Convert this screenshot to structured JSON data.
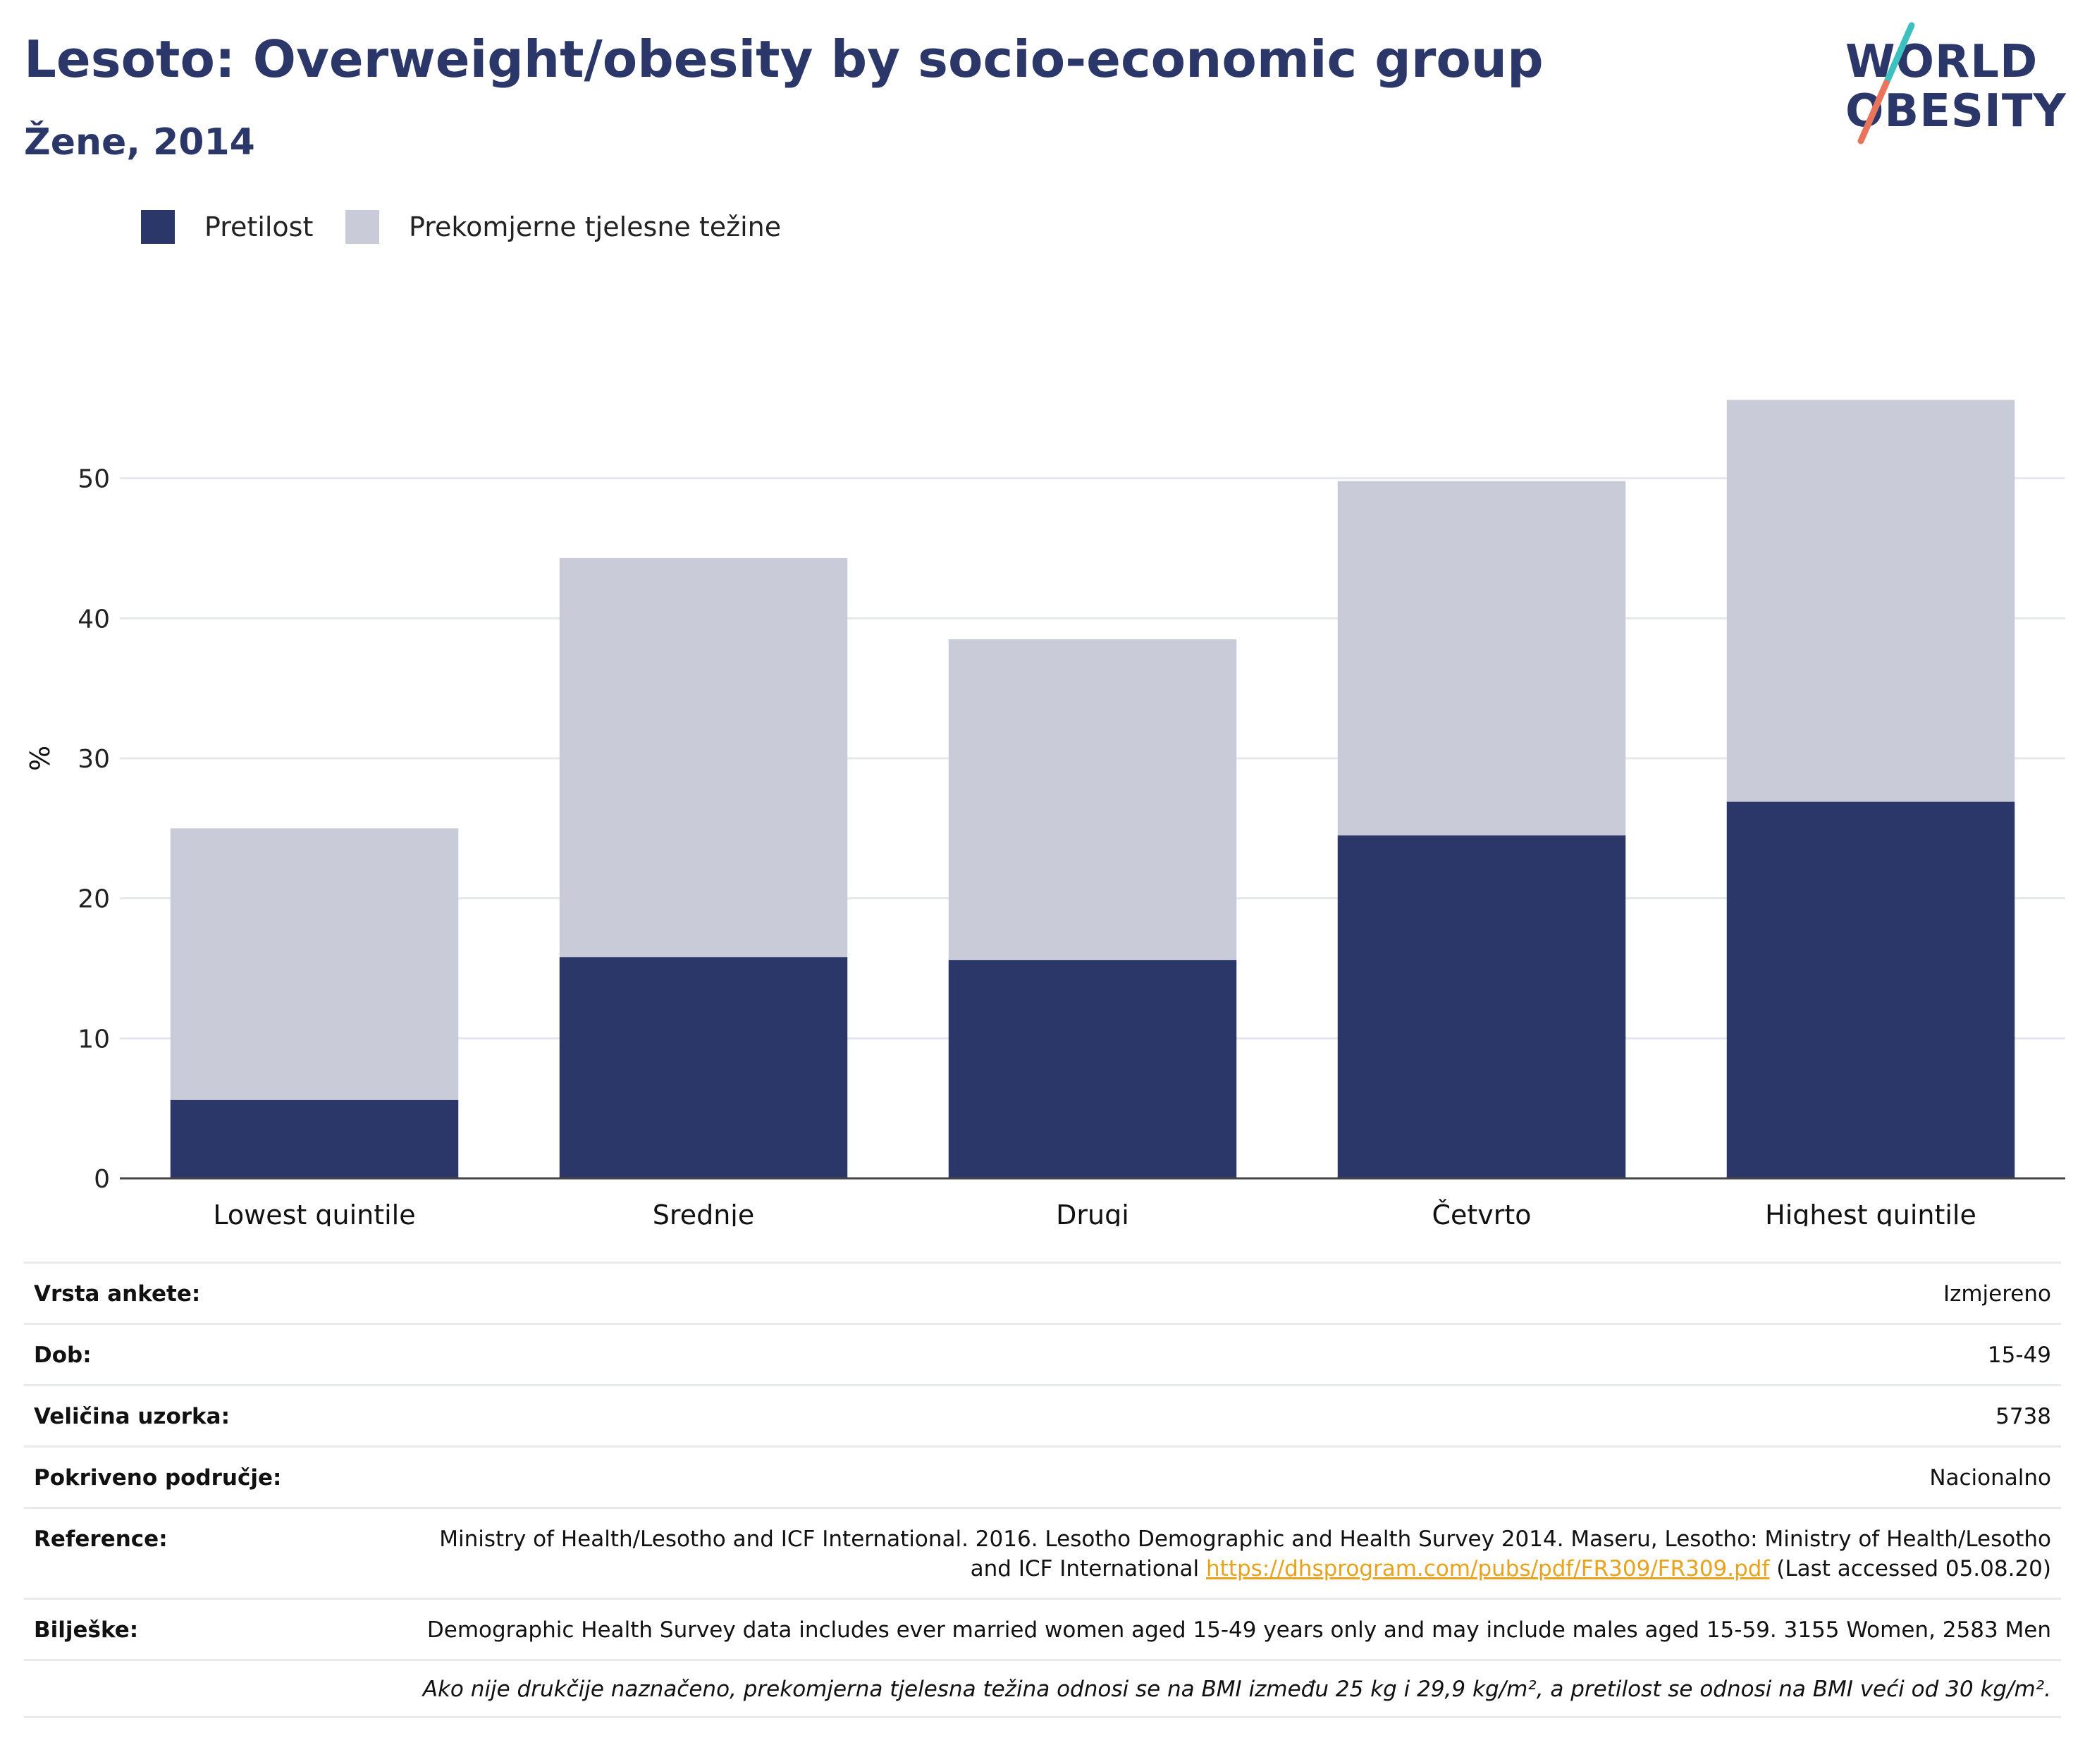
{
  "header": {
    "title": "Lesoto: Overweight/obesity by socio-economic group",
    "subtitle": "Žene, 2014"
  },
  "logo": {
    "line1": "WORLD",
    "line2": "OBESITY",
    "colors": {
      "text": "#2b3769",
      "slash_top": "#3cc0c0",
      "slash_bottom": "#e8745c"
    }
  },
  "colors": {
    "obesity": "#2b3769",
    "overweight": "#c9ccd8",
    "grid": "#e6e8ee",
    "axis": "#444444",
    "link": "#e8a21c"
  },
  "chart_data": {
    "type": "bar",
    "stacked": true,
    "categories": [
      "Lowest quintile",
      "Srednje",
      "Drugi",
      "Četvrto",
      "Highest quintile"
    ],
    "series": [
      {
        "name": "Pretilost",
        "values": [
          5.6,
          15.8,
          15.6,
          24.5,
          26.9
        ],
        "color": "#2b3769"
      },
      {
        "name": "Prekomjerne tjelesne težine",
        "values": [
          19.4,
          28.5,
          22.9,
          25.3,
          28.7
        ],
        "color": "#c9ccd8"
      }
    ],
    "ylabel": "%",
    "xlabel": "",
    "ylim": [
      0,
      60
    ],
    "yticks": [
      0,
      10,
      20,
      30,
      40,
      50
    ],
    "grid": true,
    "legend_position": "top-left"
  },
  "info": {
    "rows": [
      {
        "label": "Vrsta ankete:",
        "value": "Izmjereno"
      },
      {
        "label": "Dob:",
        "value": "15-49"
      },
      {
        "label": "Veličina uzorka:",
        "value": "5738"
      },
      {
        "label": "Pokriveno područje:",
        "value": "Nacionalno"
      }
    ],
    "reference": {
      "label": "Reference:",
      "text": "Ministry of Health/Lesotho and ICF International. 2016. Lesotho Demographic and Health Survey 2014. Maseru, Lesotho: Ministry of Health/Lesotho and ICF International",
      "link": "https://dhsprogram.com/pubs/pdf/FR309/FR309.pdf",
      "suffix": "(Last accessed 05.08.20)"
    },
    "notes": {
      "label": "Bilješke:",
      "value": "Demographic Health Survey data includes ever married women aged 15-49 years only and may include males aged 15-59. 3155 Women, 2583 Men"
    },
    "footnote": "Ako nije drukčije naznačeno, prekomjerna tjelesna težina odnosi se na BMI između 25 kg i 29,9 kg/m², a pretilost se odnosi na BMI veći od 30 kg/m²."
  }
}
